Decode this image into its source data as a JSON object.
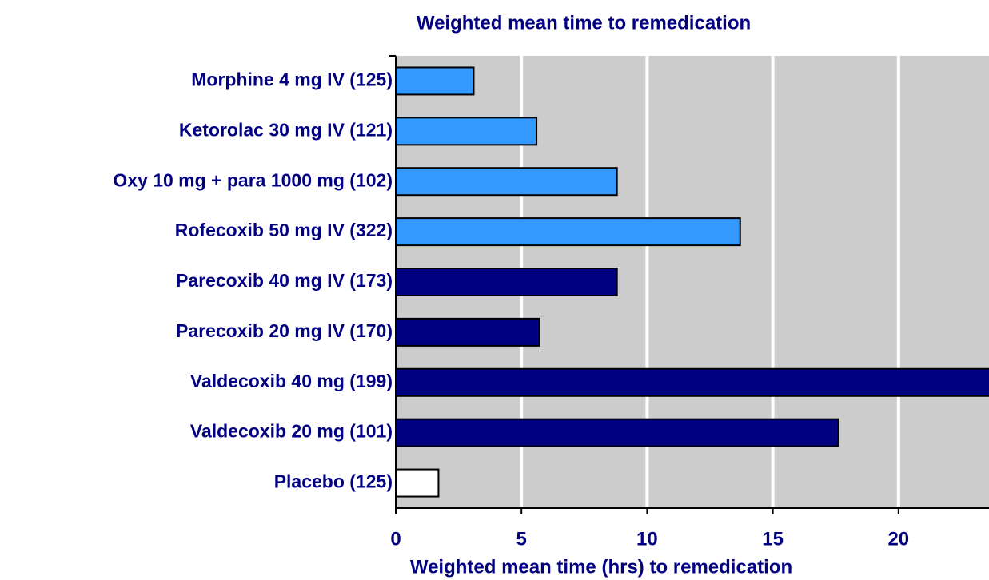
{
  "chart_data": {
    "type": "bar",
    "orientation": "horizontal",
    "title": "Weighted mean time to remedication",
    "x_label": "Weighted mean time (hrs) to remedication",
    "categories": [
      "Morphine 4 mg IV (125)",
      "Ketorolac 30 mg IV (121)",
      "Oxy 10 mg + para 1000 mg (102)",
      "Rofecoxib 50 mg IV (322)",
      "Parecoxib 40 mg IV (173)",
      "Parecoxib 20 mg IV (170)",
      "Valdecoxib 40 mg (199)",
      "Valdecoxib 20 mg (101)",
      "Placebo (125)"
    ],
    "values": [
      3.1,
      5.6,
      8.8,
      13.7,
      8.8,
      5.7,
      24,
      17.6,
      1.7
    ],
    "colors": [
      "#3399ff",
      "#3399ff",
      "#3399ff",
      "#3399ff",
      "#000080",
      "#000080",
      "#000080",
      "#000080",
      "#ffffff"
    ],
    "xlim": [
      0,
      23.6
    ],
    "xticks": [
      0,
      5,
      10,
      15,
      20
    ],
    "grid": true
  }
}
